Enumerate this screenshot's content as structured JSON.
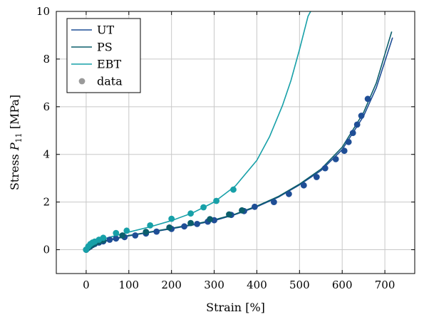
{
  "chart_data": {
    "type": "line",
    "xlabel": "Strain [%]",
    "ylabel": "Stress P_11 [MPa]",
    "ylabel_parts": {
      "before": "Stress ",
      "symbol": "P",
      "subscript": "11",
      "after": "  [MPa]"
    },
    "xlim": [
      -70,
      770
    ],
    "ylim": [
      -1,
      10
    ],
    "x_ticks": [
      0,
      100,
      200,
      300,
      400,
      500,
      600,
      700
    ],
    "y_ticks": [
      0,
      2,
      4,
      6,
      8,
      10
    ],
    "grid": true,
    "legend": {
      "position": "top-left"
    },
    "series": [
      {
        "name": "UT",
        "kind": "line",
        "color": "#1f4e96",
        "x": [
          0,
          25,
          50,
          100,
          150,
          200,
          250,
          300,
          350,
          400,
          450,
          500,
          550,
          600,
          650,
          680,
          700,
          718
        ],
        "y": [
          0,
          0.2,
          0.38,
          0.58,
          0.73,
          0.88,
          1.04,
          1.22,
          1.48,
          1.8,
          2.2,
          2.72,
          3.32,
          4.2,
          5.6,
          6.8,
          7.9,
          8.9
        ]
      },
      {
        "name": "PS",
        "kind": "line",
        "color": "#0b5e6b",
        "x": [
          0,
          25,
          50,
          100,
          150,
          200,
          250,
          300,
          350,
          400,
          450,
          500,
          550,
          600,
          650,
          680,
          700,
          716
        ],
        "y": [
          0,
          0.22,
          0.4,
          0.6,
          0.75,
          0.9,
          1.06,
          1.25,
          1.5,
          1.83,
          2.23,
          2.75,
          3.38,
          4.3,
          5.75,
          7.0,
          8.2,
          9.15
        ]
      },
      {
        "name": "EBT",
        "kind": "line",
        "color": "#17a0a8",
        "x": [
          0,
          25,
          50,
          100,
          150,
          200,
          250,
          300,
          350,
          400,
          430,
          460,
          480,
          500,
          510,
          520,
          526
        ],
        "y": [
          0,
          0.32,
          0.5,
          0.74,
          0.96,
          1.22,
          1.55,
          2.0,
          2.68,
          3.75,
          4.75,
          6.05,
          7.1,
          8.4,
          9.1,
          9.8,
          10.0
        ]
      },
      {
        "name": "data (UT)",
        "kind": "scatter",
        "color": "#1f4e96",
        "x": [
          0,
          5,
          10,
          15,
          20,
          30,
          40,
          55,
          70,
          90,
          115,
          140,
          165,
          200,
          230,
          260,
          285,
          300,
          340,
          370,
          395,
          440,
          475,
          510,
          540,
          560,
          585,
          605,
          615,
          625,
          635,
          645,
          660
        ],
        "y": [
          0,
          0.08,
          0.14,
          0.2,
          0.24,
          0.3,
          0.35,
          0.42,
          0.47,
          0.53,
          0.6,
          0.68,
          0.76,
          0.87,
          0.98,
          1.08,
          1.18,
          1.24,
          1.46,
          1.62,
          1.8,
          2.0,
          2.34,
          2.7,
          3.05,
          3.42,
          3.8,
          4.15,
          4.52,
          4.9,
          5.25,
          5.62,
          6.33
        ]
      },
      {
        "name": "data (PS)",
        "kind": "scatter",
        "color": "#0b5e6b",
        "x": [
          0,
          5,
          10,
          15,
          20,
          30,
          40,
          85,
          140,
          195,
          245,
          290,
          335,
          365
        ],
        "y": [
          0,
          0.1,
          0.16,
          0.22,
          0.27,
          0.34,
          0.4,
          0.6,
          0.75,
          0.93,
          1.12,
          1.28,
          1.48,
          1.65
        ]
      },
      {
        "name": "data (EBT)",
        "kind": "scatter",
        "color": "#17a0a8",
        "x": [
          0,
          5,
          10,
          15,
          20,
          30,
          40,
          70,
          95,
          150,
          200,
          245,
          275,
          305,
          345
        ],
        "y": [
          0,
          0.14,
          0.24,
          0.3,
          0.34,
          0.42,
          0.5,
          0.7,
          0.8,
          1.02,
          1.3,
          1.52,
          1.78,
          2.05,
          2.52
        ]
      }
    ],
    "legend_entries": [
      {
        "label": "UT",
        "kind": "line",
        "color": "#1f4e96"
      },
      {
        "label": "PS",
        "kind": "line",
        "color": "#0b5e6b"
      },
      {
        "label": "EBT",
        "kind": "line",
        "color": "#17a0a8"
      },
      {
        "label": "data",
        "kind": "marker",
        "color": "#9a9a9a"
      }
    ]
  }
}
